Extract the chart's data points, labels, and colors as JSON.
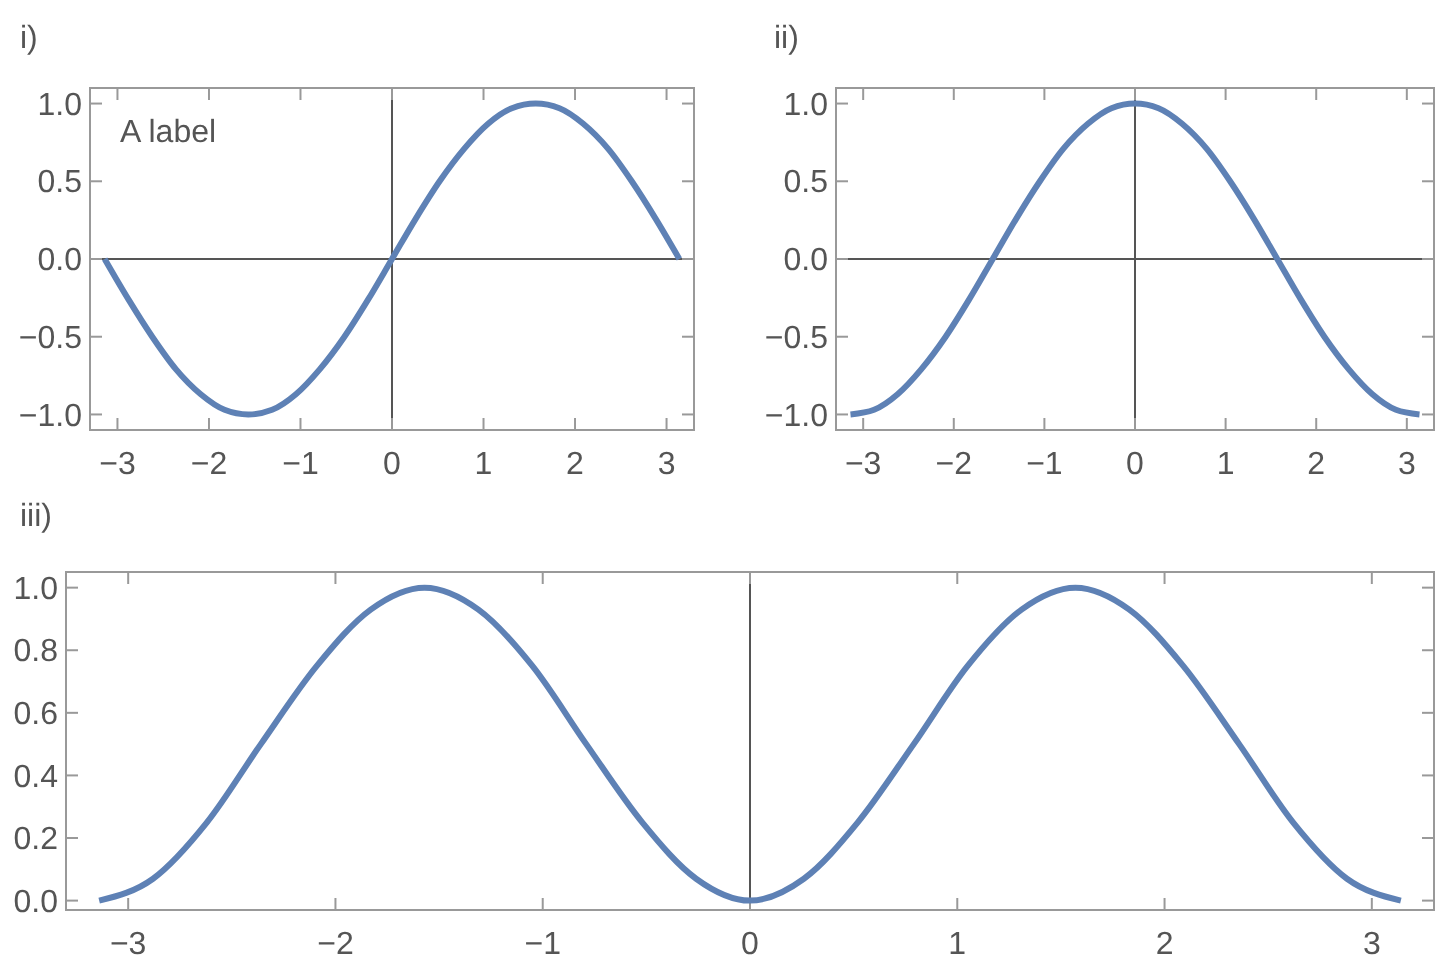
{
  "chart_data": [
    {
      "type": "line",
      "title": "i)",
      "annotations": [
        "A label"
      ],
      "x": [
        -3.14,
        -2.88,
        -2.62,
        -2.36,
        -2.09,
        -1.83,
        -1.57,
        -1.31,
        -1.05,
        -0.79,
        -0.52,
        -0.26,
        0,
        0.26,
        0.52,
        0.79,
        1.05,
        1.31,
        1.57,
        1.83,
        2.09,
        2.36,
        2.62,
        2.88,
        3.14
      ],
      "series": [
        {
          "color": "#5e81b5",
          "values": [
            0,
            -0.26,
            -0.5,
            -0.71,
            -0.87,
            -0.97,
            -1,
            -0.97,
            -0.87,
            -0.71,
            -0.5,
            -0.26,
            0,
            0.26,
            0.5,
            0.71,
            0.87,
            0.97,
            1,
            0.97,
            0.87,
            0.71,
            0.5,
            0.26,
            0
          ]
        }
      ],
      "xlim": [
        -3.3,
        3.3
      ],
      "ylim": [
        -1.1,
        1.1
      ],
      "xticks": [
        {
          "value": -3,
          "label": "−3"
        },
        {
          "value": -2,
          "label": "−2"
        },
        {
          "value": -1,
          "label": "−1"
        },
        0,
        1,
        2,
        3
      ],
      "yticks": [
        {
          "value": -1,
          "label": "−1.0"
        },
        {
          "value": -0.5,
          "label": "−0.5"
        },
        {
          "value": 0,
          "label": "0.0"
        },
        0.5,
        {
          "value": 1,
          "label": "1.0"
        }
      ],
      "ref_lines": [
        {
          "axis": "x",
          "value": 0
        },
        {
          "axis": "y",
          "value": 0
        }
      ],
      "line_style": "solid"
    },
    {
      "type": "line",
      "title": "ii)",
      "x": [
        -3.14,
        -2.88,
        -2.62,
        -2.36,
        -2.09,
        -1.83,
        -1.57,
        -1.31,
        -1.05,
        -0.79,
        -0.52,
        -0.26,
        0,
        0.26,
        0.52,
        0.79,
        1.05,
        1.31,
        1.57,
        1.83,
        2.09,
        2.36,
        2.62,
        2.88,
        3.14
      ],
      "series": [
        {
          "color": "#5e81b5",
          "values": [
            -1,
            -0.97,
            -0.87,
            -0.71,
            -0.5,
            -0.26,
            0,
            0.26,
            0.5,
            0.71,
            0.87,
            0.97,
            1,
            0.97,
            0.87,
            0.71,
            0.5,
            0.26,
            0,
            -0.26,
            -0.5,
            -0.71,
            -0.87,
            -0.97,
            -1
          ]
        }
      ],
      "xlim": [
        -3.3,
        3.3
      ],
      "ylim": [
        -1.1,
        1.1
      ],
      "xticks": [
        {
          "value": -3,
          "label": "−3"
        },
        {
          "value": -2,
          "label": "−2"
        },
        {
          "value": -1,
          "label": "−1"
        },
        0,
        1,
        2,
        3
      ],
      "yticks": [
        {
          "value": -1,
          "label": "−1.0"
        },
        {
          "value": -0.5,
          "label": "−0.5"
        },
        {
          "value": 0,
          "label": "0.0"
        },
        0.5,
        {
          "value": 1,
          "label": "1.0"
        }
      ],
      "ref_lines": [
        {
          "axis": "x",
          "value": 0
        },
        {
          "axis": "y",
          "value": 0
        }
      ],
      "line_style": "solid"
    },
    {
      "type": "line",
      "title": "iii)",
      "x": [
        -3.14,
        -2.88,
        -2.62,
        -2.36,
        -2.09,
        -1.83,
        -1.57,
        -1.31,
        -1.05,
        -0.79,
        -0.52,
        -0.26,
        0,
        0.26,
        0.52,
        0.79,
        1.05,
        1.31,
        1.57,
        1.83,
        2.09,
        2.36,
        2.62,
        2.88,
        3.14
      ],
      "series": [
        {
          "color": "#5e81b5",
          "values": [
            0,
            0.07,
            0.25,
            0.5,
            0.75,
            0.93,
            1,
            0.93,
            0.75,
            0.5,
            0.25,
            0.07,
            0,
            0.07,
            0.25,
            0.5,
            0.75,
            0.93,
            1,
            0.93,
            0.75,
            0.5,
            0.25,
            0.07,
            0
          ]
        }
      ],
      "xlim": [
        -3.3,
        3.3
      ],
      "ylim": [
        -0.03,
        1.05
      ],
      "xticks": [
        {
          "value": -3,
          "label": "−3"
        },
        {
          "value": -2,
          "label": "−2"
        },
        {
          "value": -1,
          "label": "−1"
        },
        0,
        1,
        2,
        3
      ],
      "yticks": [
        {
          "value": 0,
          "label": "0.0"
        },
        0.2,
        0.4,
        0.6,
        0.8,
        {
          "value": 1,
          "label": "1.0"
        }
      ],
      "ref_lines": [
        {
          "axis": "x",
          "value": 0
        }
      ],
      "line_style": "solid"
    }
  ]
}
